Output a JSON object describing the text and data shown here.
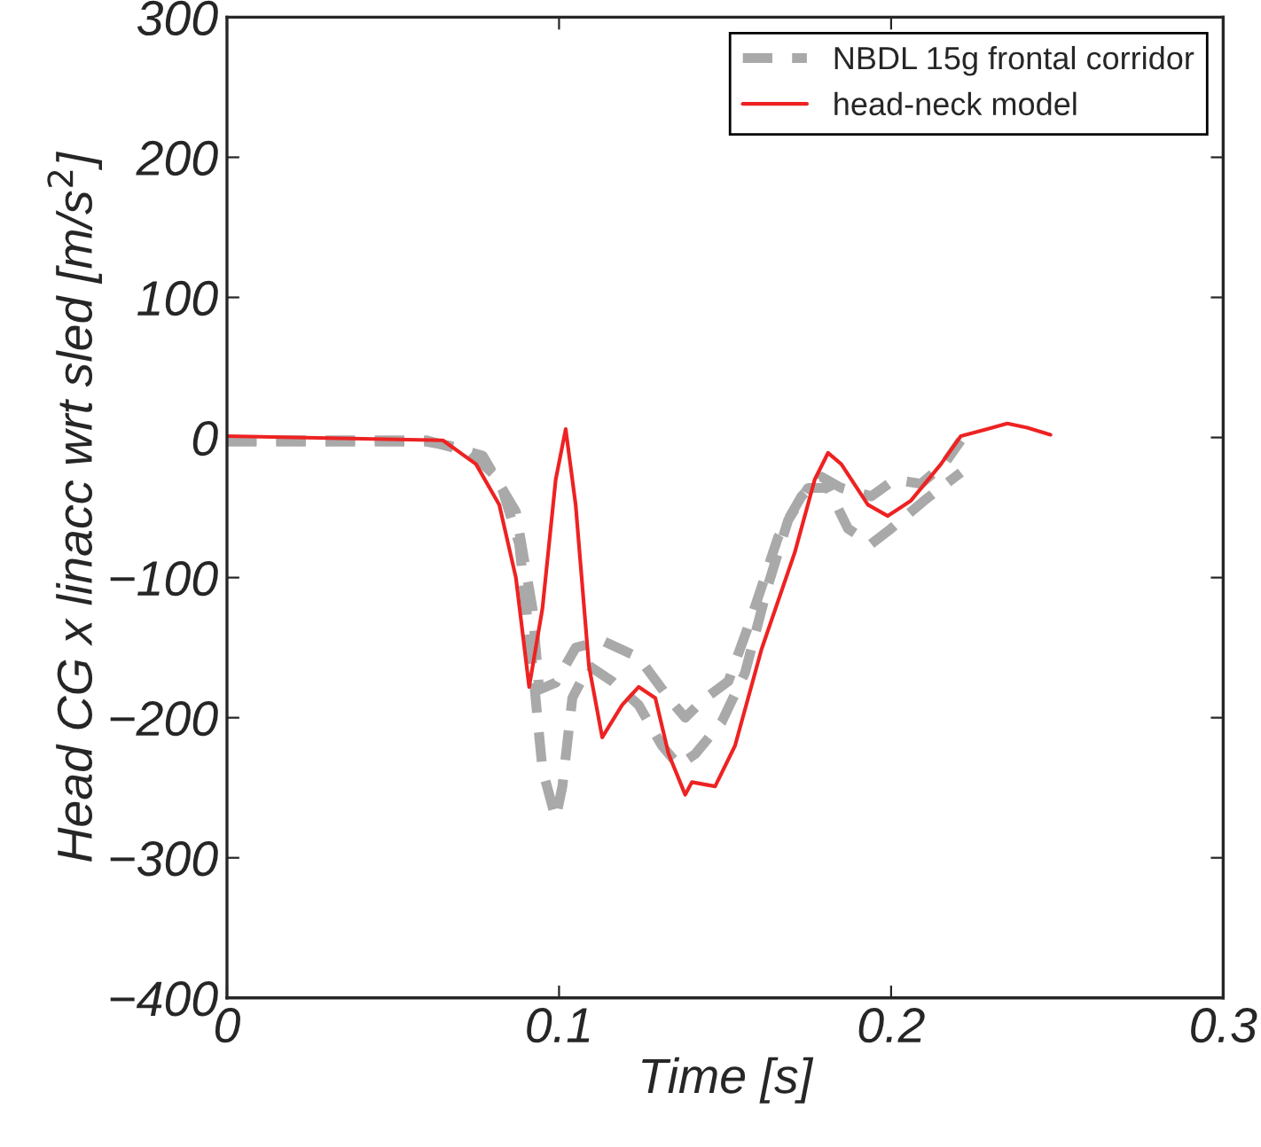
{
  "chart_data": {
    "type": "line",
    "xlabel": "Time [s]",
    "ylabel": "Head CG x linacc wrt sled [m/s$^{2}$]",
    "xlim": [
      0,
      0.3
    ],
    "ylim": [
      -400,
      300
    ],
    "xticks": [
      0,
      0.1,
      0.2,
      0.3
    ],
    "yticks": [
      -400,
      -300,
      -200,
      -100,
      0,
      100,
      200,
      300
    ],
    "grid": false,
    "legend": "top right",
    "series": [
      {
        "name": "NBDL 15g frontal corridor",
        "color": "#a9a9a9",
        "line_style": "dashed",
        "x": [
          0,
          0.06,
          0.077,
          0.087,
          0.092,
          0.094,
          0.099,
          0.105,
          0.113,
          0.124,
          0.133,
          0.138,
          0.143,
          0.151,
          0.158,
          0.166,
          0.173,
          0.179,
          0.185,
          0.194,
          0.201,
          0.209,
          0.216,
          0.221
        ],
        "values": [
          -2,
          -2,
          -13,
          -53,
          -122,
          -180,
          -175,
          -150,
          -145,
          -157,
          -186,
          -200,
          -188,
          -174,
          -128,
          -71,
          -42,
          -28,
          -36,
          -42,
          -30,
          -33,
          -19,
          -2
        ]
      },
      {
        "color": "#a9a9a9",
        "line_style": "dashed",
        "x": [
          0,
          0.06,
          0.072,
          0.082,
          0.088,
          0.092,
          0.095,
          0.099,
          0.101,
          0.104,
          0.109,
          0.116,
          0.124,
          0.131,
          0.136,
          0.141,
          0.149,
          0.156,
          0.163,
          0.169,
          0.175,
          0.181,
          0.187,
          0.194,
          0.2,
          0.21,
          0.221
        ],
        "values": [
          -3,
          -3,
          -8,
          -30,
          -76,
          -163,
          -237,
          -272,
          -249,
          -186,
          -163,
          -174,
          -191,
          -220,
          -234,
          -226,
          -203,
          -168,
          -105,
          -59,
          -36,
          -36,
          -65,
          -76,
          -65,
          -45,
          -25
        ]
      },
      {
        "name": "head-neck model",
        "color": "#ee2222",
        "line_style": "solid",
        "x": [
          0,
          0.065,
          0.075,
          0.082,
          0.087,
          0.091,
          0.095,
          0.099,
          0.102,
          0.105,
          0.109,
          0.113,
          0.119,
          0.124,
          0.129,
          0.133,
          0.138,
          0.14,
          0.147,
          0.153,
          0.161,
          0.171,
          0.177,
          0.181,
          0.185,
          0.193,
          0.199,
          0.206,
          0.215,
          0.221,
          0.229,
          0.235,
          0.241,
          0.248
        ],
        "values": [
          1,
          -2,
          -19,
          -48,
          -100,
          -178,
          -122,
          -30,
          6,
          -48,
          -163,
          -214,
          -191,
          -178,
          -186,
          -226,
          -255,
          -246,
          -249,
          -220,
          -151,
          -82,
          -30,
          -11,
          -19,
          -48,
          -56,
          -45,
          -19,
          1,
          6,
          10,
          7,
          2
        ]
      }
    ]
  }
}
